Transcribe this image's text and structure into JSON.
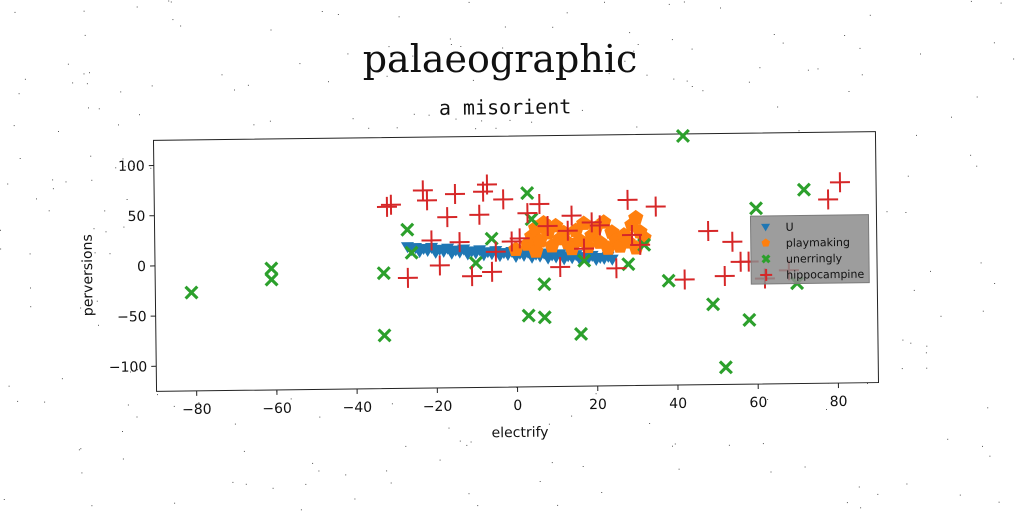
{
  "chart_data": {
    "type": "scatter",
    "suptitle": "palaeographic",
    "title": "a misorient",
    "xlabel": "electrify",
    "ylabel": "perversions",
    "xlim": [
      -90,
      90
    ],
    "ylim": [
      -125,
      125
    ],
    "xticks": [
      -80,
      -60,
      -40,
      -20,
      0,
      20,
      40,
      60,
      80
    ],
    "yticks": [
      100,
      50,
      0,
      -50,
      -100
    ],
    "xtick_labels": [
      "−80",
      "−60",
      "−40",
      "−20",
      "0",
      "20",
      "40",
      "60",
      "80"
    ],
    "ytick_labels": [
      "100",
      "50",
      "0",
      "−50",
      "−100"
    ],
    "grid": false,
    "legend_position": "right",
    "legend_entries": [
      "U",
      "playmaking",
      "unerringly",
      "hippocampine"
    ],
    "series": [
      {
        "name": "U",
        "marker": "triangle-down",
        "color": "#1f77b4",
        "points": [
          [
            -27,
            16
          ],
          [
            -26,
            13
          ],
          [
            -25,
            15
          ],
          [
            -24,
            11
          ],
          [
            -23,
            14
          ],
          [
            -22,
            12
          ],
          [
            -21,
            15
          ],
          [
            -20,
            10
          ],
          [
            -19,
            13
          ],
          [
            -18,
            11
          ],
          [
            -17,
            14
          ],
          [
            -16,
            9
          ],
          [
            -15,
            12
          ],
          [
            -14,
            10
          ],
          [
            -13,
            13
          ],
          [
            -12,
            8
          ],
          [
            -11,
            11
          ],
          [
            -10,
            9
          ],
          [
            -9,
            12
          ],
          [
            -8,
            7
          ],
          [
            -7,
            10
          ],
          [
            -6,
            8
          ],
          [
            -5,
            11
          ],
          [
            -4,
            6
          ],
          [
            -3,
            9
          ],
          [
            -2,
            7
          ],
          [
            -1,
            10
          ],
          [
            0,
            5
          ],
          [
            1,
            8
          ],
          [
            2,
            6
          ],
          [
            3,
            9
          ],
          [
            4,
            4
          ],
          [
            5,
            7
          ],
          [
            6,
            5
          ],
          [
            7,
            8
          ],
          [
            8,
            3
          ],
          [
            9,
            6
          ],
          [
            10,
            4
          ],
          [
            11,
            7
          ],
          [
            12,
            2
          ],
          [
            13,
            5
          ],
          [
            14,
            3
          ],
          [
            15,
            6
          ],
          [
            16,
            1
          ],
          [
            17,
            4
          ],
          [
            18,
            2
          ],
          [
            19,
            5
          ],
          [
            20,
            1
          ],
          [
            21,
            3
          ],
          [
            22,
            2
          ],
          [
            23,
            4
          ],
          [
            24,
            1
          ]
        ]
      },
      {
        "name": "playmaking",
        "marker": "pentagon",
        "color": "#ff7f0e",
        "points": [
          [
            0,
            12
          ],
          [
            3,
            17
          ],
          [
            4,
            25
          ],
          [
            5,
            33
          ],
          [
            5,
            10
          ],
          [
            6,
            20
          ],
          [
            7,
            38
          ],
          [
            8,
            28
          ],
          [
            9,
            15
          ],
          [
            10,
            35
          ],
          [
            11,
            22
          ],
          [
            12,
            28
          ],
          [
            13,
            18
          ],
          [
            14,
            12
          ],
          [
            15,
            30
          ],
          [
            16,
            20
          ],
          [
            17,
            37
          ],
          [
            18,
            14
          ],
          [
            19,
            25
          ],
          [
            20,
            32
          ],
          [
            21,
            18
          ],
          [
            22,
            38
          ],
          [
            23,
            12
          ],
          [
            24,
            28
          ],
          [
            25,
            20
          ],
          [
            26,
            14
          ],
          [
            27,
            25
          ],
          [
            28,
            18
          ],
          [
            29,
            35
          ],
          [
            30,
            42
          ],
          [
            30,
            12
          ],
          [
            31,
            28
          ],
          [
            32,
            22
          ]
        ]
      },
      {
        "name": "unerringly",
        "marker": "x-filled",
        "color": "#2ca02c",
        "points": [
          [
            -81,
            -27
          ],
          [
            -61,
            -4
          ],
          [
            -61,
            -15
          ],
          [
            -33,
            -10
          ],
          [
            -33,
            -72
          ],
          [
            -27,
            33
          ],
          [
            -26,
            10
          ],
          [
            -10,
            -1
          ],
          [
            -6,
            23
          ],
          [
            3,
            68
          ],
          [
            3,
            -54
          ],
          [
            4,
            42
          ],
          [
            7,
            -23
          ],
          [
            7,
            -56
          ],
          [
            16,
            -73
          ],
          [
            17,
            0
          ],
          [
            28,
            -4
          ],
          [
            32,
            15
          ],
          [
            38,
            -21
          ],
          [
            42,
            123
          ],
          [
            49,
            -45
          ],
          [
            52,
            -108
          ],
          [
            58,
            -61
          ],
          [
            60,
            50
          ],
          [
            70,
            -25
          ],
          [
            72,
            68
          ]
        ]
      },
      {
        "name": "hippocampine",
        "marker": "plus",
        "color": "#d62728",
        "points": [
          [
            -32,
            56
          ],
          [
            -31,
            58
          ],
          [
            -27,
            -15
          ],
          [
            -23,
            72
          ],
          [
            -22,
            62
          ],
          [
            -21,
            22
          ],
          [
            -19,
            -3
          ],
          [
            -17,
            45
          ],
          [
            -15,
            68
          ],
          [
            -14,
            20
          ],
          [
            -11,
            -14
          ],
          [
            -9,
            47
          ],
          [
            -8,
            70
          ],
          [
            -7,
            77
          ],
          [
            -6,
            -10
          ],
          [
            -5,
            10
          ],
          [
            -3,
            62
          ],
          [
            -1,
            20
          ],
          [
            1,
            23
          ],
          [
            3,
            48
          ],
          [
            6,
            57
          ],
          [
            8,
            35
          ],
          [
            11,
            -6
          ],
          [
            13,
            30
          ],
          [
            14,
            45
          ],
          [
            17,
            12
          ],
          [
            19,
            38
          ],
          [
            21,
            35
          ],
          [
            25,
            -8
          ],
          [
            28,
            60
          ],
          [
            29,
            25
          ],
          [
            31,
            15
          ],
          [
            35,
            53
          ],
          [
            42,
            -20
          ],
          [
            48,
            28
          ],
          [
            52,
            -17
          ],
          [
            54,
            17
          ],
          [
            56,
            -3
          ],
          [
            58,
            -3
          ],
          [
            62,
            -20
          ],
          [
            68,
            -12
          ],
          [
            78,
            58
          ],
          [
            81,
            75
          ]
        ]
      }
    ]
  }
}
